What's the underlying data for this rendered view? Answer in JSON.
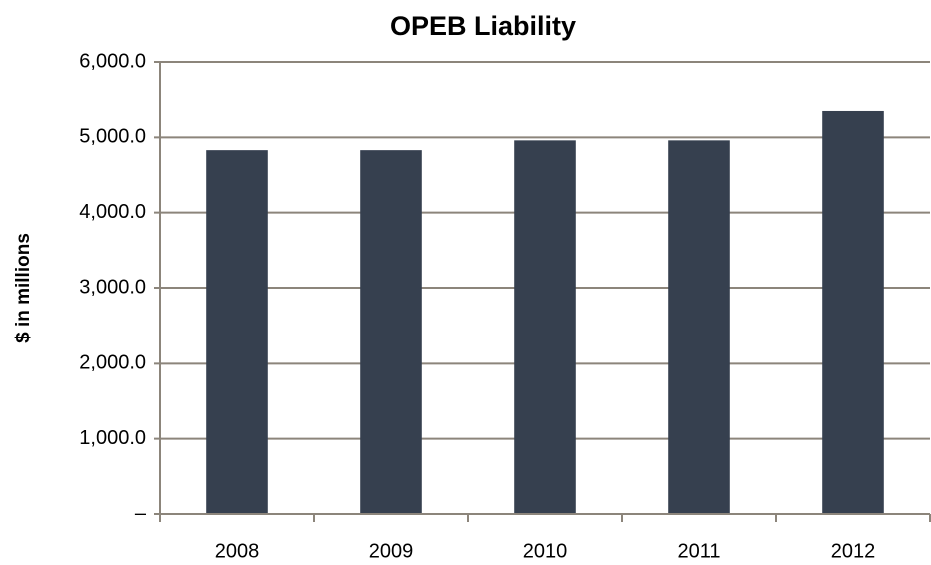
{
  "chart_data": {
    "type": "bar",
    "title": "OPEB Liability",
    "y_label": "$ in millions",
    "categories": [
      "2008",
      "2009",
      "2010",
      "2011",
      "2012"
    ],
    "values": [
      4830,
      4830,
      4960,
      4960,
      5350
    ],
    "color": "#36404f",
    "ylim": [
      0,
      6000
    ],
    "yticks": [
      {
        "value": 0,
        "label": "–"
      },
      {
        "value": 1000,
        "label": "1,000.0"
      },
      {
        "value": 2000,
        "label": "2,000.0"
      },
      {
        "value": 3000,
        "label": "3,000.0"
      },
      {
        "value": 4000,
        "label": "4,000.0"
      },
      {
        "value": 5000,
        "label": "5,000.0"
      },
      {
        "value": 6000,
        "label": "6,000.0"
      }
    ],
    "grid": true
  }
}
